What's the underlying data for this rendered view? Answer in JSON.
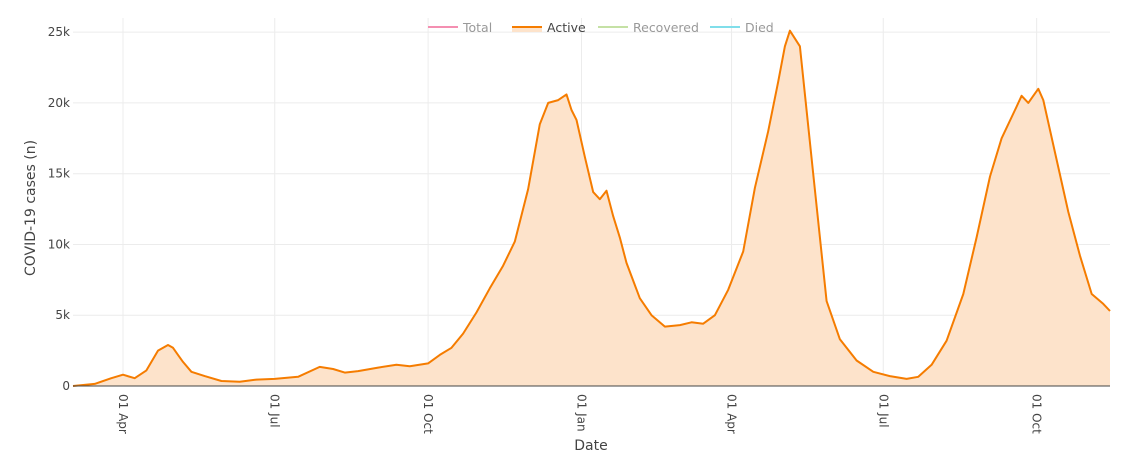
{
  "chart_data": {
    "type": "area",
    "title": "",
    "xlabel": "Date",
    "ylabel": "COVID-19 cases (n)",
    "ylim": [
      0,
      26000
    ],
    "xlim": [
      "2020-03-02",
      "2021-11-14"
    ],
    "y_ticks": [
      {
        "value": 0,
        "label": "0"
      },
      {
        "value": 5000,
        "label": "5k"
      },
      {
        "value": 10000,
        "label": "10k"
      },
      {
        "value": 15000,
        "label": "15k"
      },
      {
        "value": 20000,
        "label": "20k"
      },
      {
        "value": 25000,
        "label": "25k"
      }
    ],
    "x_ticks": [
      {
        "value": "2020-04-01",
        "label": "01 Apr"
      },
      {
        "value": "2020-07-01",
        "label": "01 Jul"
      },
      {
        "value": "2020-10-01",
        "label": "01 Oct"
      },
      {
        "value": "2021-01-01",
        "label": "01 Jan"
      },
      {
        "value": "2021-04-01",
        "label": "01 Apr"
      },
      {
        "value": "2021-07-01",
        "label": "01 Jul"
      },
      {
        "value": "2021-10-01",
        "label": "01 Oct"
      }
    ],
    "grid": true,
    "legend_position": "top-center",
    "legend": [
      {
        "name": "Total",
        "color": "#f48fb1",
        "active": false
      },
      {
        "name": "Active",
        "color": "#f57c00",
        "active": true
      },
      {
        "name": "Recovered",
        "color": "#c5e1a5",
        "active": false
      },
      {
        "name": "Died",
        "color": "#80deea",
        "active": false
      }
    ],
    "series": [
      {
        "name": "Active",
        "color": "#f57c00",
        "fill": "#fde3cb",
        "x": [
          "2020-03-02",
          "2020-03-15",
          "2020-03-25",
          "2020-04-01",
          "2020-04-08",
          "2020-04-15",
          "2020-04-22",
          "2020-04-28",
          "2020-05-01",
          "2020-05-04",
          "2020-05-07",
          "2020-05-12",
          "2020-05-20",
          "2020-05-30",
          "2020-06-10",
          "2020-06-20",
          "2020-07-01",
          "2020-07-15",
          "2020-07-28",
          "2020-08-05",
          "2020-08-12",
          "2020-08-20",
          "2020-09-01",
          "2020-09-12",
          "2020-09-20",
          "2020-10-01",
          "2020-10-08",
          "2020-10-15",
          "2020-10-22",
          "2020-10-30",
          "2020-11-07",
          "2020-11-15",
          "2020-11-22",
          "2020-11-30",
          "2020-12-07",
          "2020-12-12",
          "2020-12-18",
          "2020-12-23",
          "2020-12-26",
          "2020-12-29",
          "2021-01-03",
          "2021-01-08",
          "2021-01-12",
          "2021-01-16",
          "2021-01-20",
          "2021-01-24",
          "2021-01-28",
          "2021-02-05",
          "2021-02-12",
          "2021-02-20",
          "2021-03-01",
          "2021-03-08",
          "2021-03-15",
          "2021-03-22",
          "2021-03-30",
          "2021-04-08",
          "2021-04-15",
          "2021-04-23",
          "2021-04-29",
          "2021-05-03",
          "2021-05-06",
          "2021-05-12",
          "2021-05-20",
          "2021-05-28",
          "2021-06-05",
          "2021-06-15",
          "2021-06-25",
          "2021-07-05",
          "2021-07-15",
          "2021-07-22",
          "2021-07-30",
          "2021-08-08",
          "2021-08-18",
          "2021-08-26",
          "2021-09-03",
          "2021-09-10",
          "2021-09-18",
          "2021-09-22",
          "2021-09-26",
          "2021-09-29",
          "2021-10-02",
          "2021-10-05",
          "2021-10-12",
          "2021-10-20",
          "2021-10-27",
          "2021-11-03",
          "2021-11-10",
          "2021-11-14"
        ],
        "values": [
          0,
          150,
          550,
          800,
          550,
          1100,
          2500,
          2900,
          2700,
          2200,
          1700,
          1000,
          700,
          350,
          300,
          450,
          500,
          650,
          1350,
          1200,
          950,
          1050,
          1300,
          1500,
          1400,
          1600,
          2200,
          2700,
          3700,
          5200,
          6900,
          8500,
          10200,
          13900,
          18500,
          20000,
          20200,
          20600,
          19500,
          18800,
          16200,
          13700,
          13200,
          13800,
          12000,
          10500,
          8700,
          6200,
          5000,
          4200,
          4300,
          4500,
          4400,
          5000,
          6800,
          9500,
          14000,
          18000,
          21500,
          24000,
          25100,
          24000,
          15000,
          6000,
          3300,
          1800,
          1000,
          700,
          500,
          650,
          1500,
          3200,
          6500,
          10500,
          14800,
          17500,
          19500,
          20500,
          20000,
          20500,
          21000,
          20200,
          16500,
          12300,
          9200,
          6500,
          5800,
          5300
        ]
      }
    ]
  }
}
